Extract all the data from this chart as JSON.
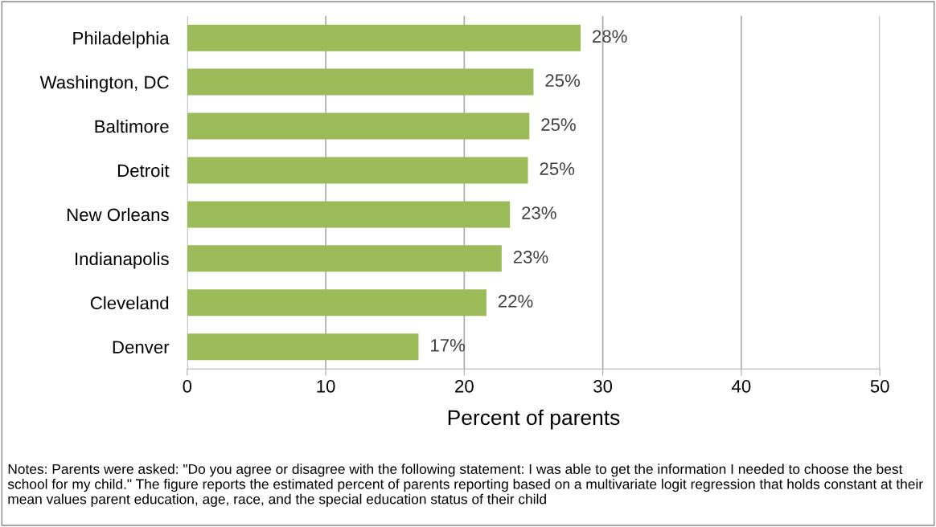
{
  "chart_data": {
    "type": "bar",
    "orientation": "horizontal",
    "xlabel": "Percent of parents",
    "categories": [
      "Philadelphia",
      "Washington, DC",
      "Baltimore",
      "Detroit",
      "New Orleans",
      "Indianapolis",
      "Cleveland",
      "Denver"
    ],
    "values": [
      28.4,
      25.0,
      24.7,
      24.6,
      23.3,
      22.7,
      21.6,
      16.7
    ],
    "value_labels": [
      "28%",
      "25%",
      "25%",
      "25%",
      "23%",
      "23%",
      "22%",
      "17%"
    ],
    "color": "#9bbb59",
    "xlim": [
      0,
      50
    ],
    "xticks": [
      0,
      10,
      20,
      30,
      40,
      50
    ],
    "grid": "x",
    "annotations": [
      "Notes: Parents were asked: \"Do you agree or disagree with the following statement: I was able to get the information I needed to choose the best school for my child.\" The figure reports the estimated percent of parents reporting based on a multivariate logit regression that holds constant at their mean values parent education, age, race, and the special education status of their child"
    ]
  }
}
